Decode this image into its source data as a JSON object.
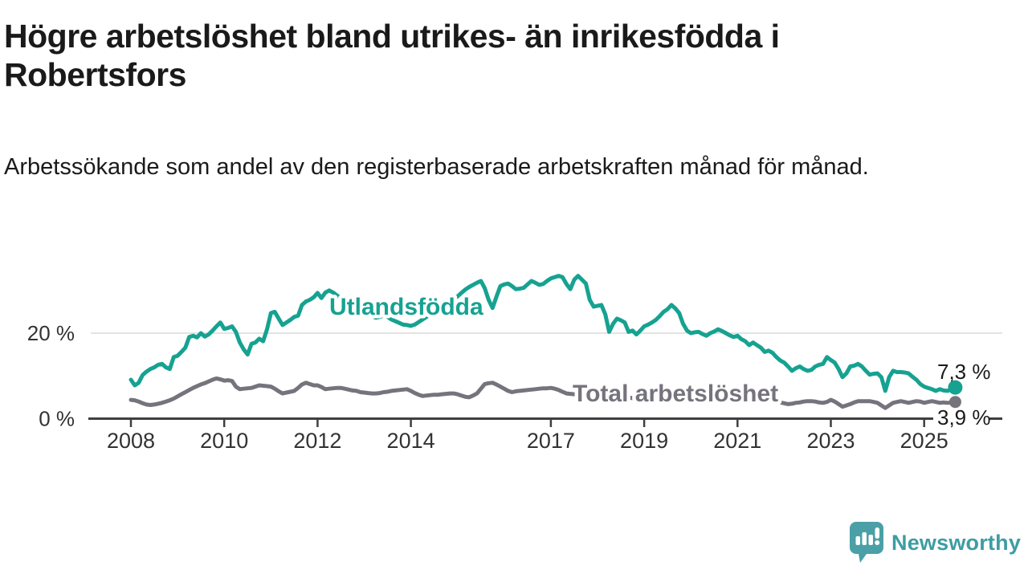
{
  "header": {
    "title": "Högre arbetslöshet bland utrikes- än inrikesfödda i Robertsfors",
    "subtitle": "Arbetssökande som andel av den registerbaserade arbetskraften månad för månad."
  },
  "chart_data": {
    "type": "line",
    "unit": "%",
    "x_start": "2008-01",
    "x_end": "2025-09",
    "x_ticks": [
      {
        "label": "2008",
        "year": 2008
      },
      {
        "label": "2010",
        "year": 2010
      },
      {
        "label": "2012",
        "year": 2012
      },
      {
        "label": "2014",
        "year": 2014
      },
      {
        "label": "2017",
        "year": 2017
      },
      {
        "label": "2019",
        "year": 2019
      },
      {
        "label": "2021",
        "year": 2021
      },
      {
        "label": "2023",
        "year": 2023
      },
      {
        "label": "2025",
        "year": 2025
      }
    ],
    "y_axis": {
      "ticks": [
        {
          "label": "0 %",
          "value": 0,
          "gridline": false
        },
        {
          "label": "20 %",
          "value": 20,
          "gridline": true
        }
      ],
      "range": [
        0,
        36
      ]
    },
    "series": [
      {
        "name": "Utlandsfödda",
        "color": "#16A291",
        "end_label": "7,3 %",
        "end_value": 7.3,
        "monthly_values": [
          9.1,
          7.8,
          8.4,
          10.2,
          11.0,
          11.6,
          12.0,
          12.6,
          12.8,
          12.0,
          11.6,
          14.4,
          14.7,
          15.6,
          16.6,
          19.1,
          19.4,
          19.0,
          20.0,
          19.2,
          19.7,
          20.6,
          21.6,
          22.5,
          21.0,
          21.2,
          21.6,
          20.3,
          17.8,
          16.2,
          15.0,
          17.5,
          17.8,
          18.7,
          18.1,
          20.9,
          24.7,
          25.0,
          23.4,
          21.9,
          22.5,
          23.1,
          23.8,
          24.1,
          26.6,
          27.4,
          27.8,
          28.4,
          29.4,
          28.2,
          29.5,
          30.0,
          29.5,
          28.8,
          28.2,
          27.6,
          27.0,
          26.4,
          25.8,
          25.2,
          24.8,
          24.4,
          24.0,
          23.6,
          23.8,
          24.2,
          23.8,
          23.2,
          22.8,
          22.4,
          22.0,
          21.9,
          21.7,
          22.0,
          22.6,
          23.2,
          23.8,
          24.4,
          25.0,
          25.6,
          26.2,
          26.8,
          27.4,
          28.0,
          28.6,
          29.4,
          30.2,
          30.8,
          31.3,
          31.8,
          32.2,
          30.5,
          27.8,
          25.9,
          28.5,
          31.0,
          31.4,
          31.6,
          31.0,
          30.3,
          30.4,
          30.6,
          31.4,
          32.2,
          31.8,
          31.3,
          31.5,
          32.2,
          32.8,
          33.1,
          33.4,
          33.1,
          31.5,
          30.3,
          32.5,
          33.4,
          32.5,
          31.6,
          27.8,
          26.2,
          26.4,
          26.6,
          24.4,
          20.3,
          22.2,
          23.4,
          23.0,
          22.5,
          20.3,
          20.6,
          19.7,
          20.6,
          21.6,
          22.0,
          22.5,
          23.1,
          24.0,
          25.0,
          25.6,
          26.6,
          25.8,
          24.7,
          22.2,
          20.6,
          20.0,
          20.2,
          20.3,
          19.8,
          19.4,
          20.0,
          20.4,
          20.9,
          20.5,
          20.0,
          19.5,
          19.1,
          19.4,
          18.6,
          18.1,
          17.2,
          17.8,
          17.2,
          16.6,
          15.6,
          15.9,
          15.4,
          14.4,
          13.6,
          13.1,
          12.2,
          11.2,
          11.8,
          12.2,
          11.6,
          11.2,
          11.4,
          12.2,
          12.6,
          12.8,
          14.4,
          13.7,
          13.1,
          11.6,
          9.7,
          10.6,
          12.2,
          12.4,
          12.8,
          12.2,
          11.2,
          10.3,
          10.5,
          10.6,
          9.7,
          6.5,
          9.7,
          11.2,
          10.9,
          10.9,
          10.8,
          10.6,
          9.8,
          9.1,
          8.1,
          7.5,
          7.2,
          6.9,
          6.5,
          6.9,
          6.6,
          6.5,
          6.9,
          7.3
        ]
      },
      {
        "name": "Total arbetslöshet",
        "color": "#76737C",
        "end_label": "3,9 %",
        "end_value": 3.9,
        "monthly_values": [
          4.4,
          4.3,
          4.0,
          3.6,
          3.3,
          3.2,
          3.3,
          3.5,
          3.7,
          4.0,
          4.3,
          4.7,
          5.2,
          5.7,
          6.2,
          6.7,
          7.2,
          7.6,
          8.0,
          8.3,
          8.7,
          9.1,
          9.4,
          9.2,
          8.9,
          9.0,
          8.8,
          7.5,
          6.9,
          7.0,
          7.1,
          7.2,
          7.5,
          7.8,
          7.7,
          7.6,
          7.5,
          7.0,
          6.4,
          5.9,
          6.1,
          6.3,
          6.5,
          7.2,
          8.0,
          8.4,
          8.1,
          7.8,
          7.8,
          7.4,
          6.9,
          7.0,
          7.1,
          7.2,
          7.2,
          7.0,
          6.8,
          6.6,
          6.5,
          6.2,
          6.1,
          6.0,
          5.9,
          5.9,
          6.0,
          6.2,
          6.3,
          6.5,
          6.6,
          6.7,
          6.8,
          6.9,
          6.5,
          6.0,
          5.6,
          5.3,
          5.4,
          5.5,
          5.6,
          5.6,
          5.7,
          5.8,
          5.9,
          5.9,
          5.7,
          5.4,
          5.1,
          5.0,
          5.4,
          5.9,
          7.0,
          8.1,
          8.3,
          8.4,
          8.0,
          7.5,
          7.0,
          6.5,
          6.2,
          6.4,
          6.5,
          6.6,
          6.7,
          6.8,
          6.9,
          7.0,
          7.1,
          7.1,
          7.2,
          7.0,
          6.7,
          6.3,
          5.9,
          5.8,
          5.7,
          5.6,
          5.6,
          5.5,
          5.5,
          5.4,
          5.4,
          5.3,
          5.2,
          5.1,
          5.1,
          5.0,
          5.0,
          4.9,
          4.9,
          4.8,
          4.8,
          4.8,
          4.8,
          4.8,
          4.7,
          4.7,
          4.7,
          4.7,
          4.7,
          4.7,
          4.7,
          4.7,
          4.7,
          4.8,
          4.9,
          5.0,
          5.3,
          5.6,
          5.7,
          5.7,
          5.6,
          5.5,
          5.4,
          5.2,
          5.1,
          5.0,
          4.9,
          4.8,
          4.7,
          4.6,
          4.5,
          4.4,
          4.3,
          4.2,
          4.1,
          4.0,
          3.9,
          3.8,
          3.6,
          3.4,
          3.5,
          3.7,
          3.8,
          4.0,
          4.1,
          4.1,
          4.0,
          3.8,
          3.7,
          3.9,
          4.4,
          4.0,
          3.4,
          2.8,
          3.1,
          3.4,
          3.8,
          4.1,
          4.1,
          4.1,
          4.1,
          3.9,
          3.7,
          3.1,
          2.5,
          3.1,
          3.7,
          3.9,
          4.1,
          3.9,
          3.7,
          3.9,
          4.1,
          4.0,
          3.7,
          3.9,
          4.1,
          3.9,
          3.7,
          3.8,
          3.7,
          3.8,
          3.9
        ]
      }
    ],
    "colors": {
      "axis": "#3F3F3F",
      "axis_text": "#333333",
      "gridline": "#DADADA",
      "annotation_text": "#1A1A1A"
    },
    "legend_position": "inline-labels"
  },
  "footer": {
    "brand": "Newsworthy",
    "brand_color": "#4AA0A6",
    "brand_text_color": "#3D9DA3"
  }
}
